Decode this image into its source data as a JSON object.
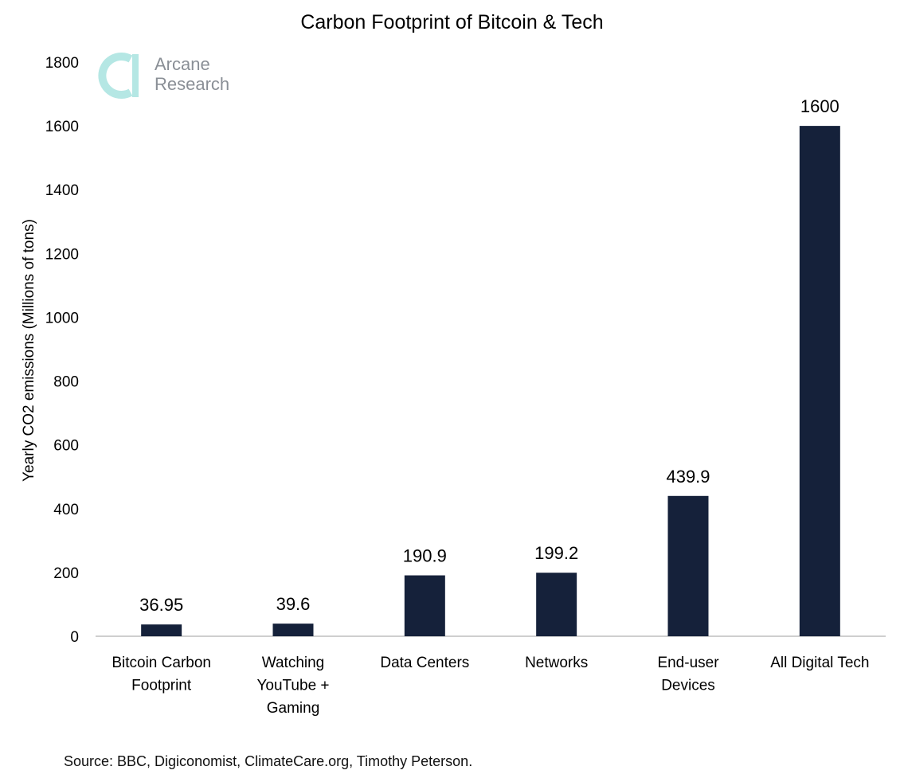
{
  "title": "Carbon Footprint of Bitcoin & Tech",
  "source": "Source: BBC, Digiconomist, ClimateCare.org, Timothy Peterson.",
  "logo": {
    "line1": "Arcane",
    "line2": "Research",
    "color": "#a8e3df"
  },
  "bar_color": "#15213a",
  "chart_data": {
    "type": "bar",
    "title": "Carbon Footprint of Bitcoin & Tech",
    "categories": [
      [
        "Bitcoin Carbon",
        "Footprint"
      ],
      [
        "Watching",
        "YouTube +",
        "Gaming"
      ],
      [
        "Data Centers"
      ],
      [
        "Networks"
      ],
      [
        "End-user",
        "Devices"
      ],
      [
        "All Digital Tech"
      ]
    ],
    "values": [
      36.95,
      39.6,
      190.9,
      199.2,
      439.9,
      1600
    ],
    "value_labels": [
      "36.95",
      "39.6",
      "190.9",
      "199.2",
      "439.9",
      "1600"
    ],
    "xlabel": "",
    "ylabel": "Yearly CO2 emissions (Millions of tons)",
    "ylim": [
      0,
      1800
    ],
    "yticks": [
      0,
      200,
      400,
      600,
      800,
      1000,
      1200,
      1400,
      1600,
      1800
    ],
    "grid": false,
    "legend": "none"
  }
}
